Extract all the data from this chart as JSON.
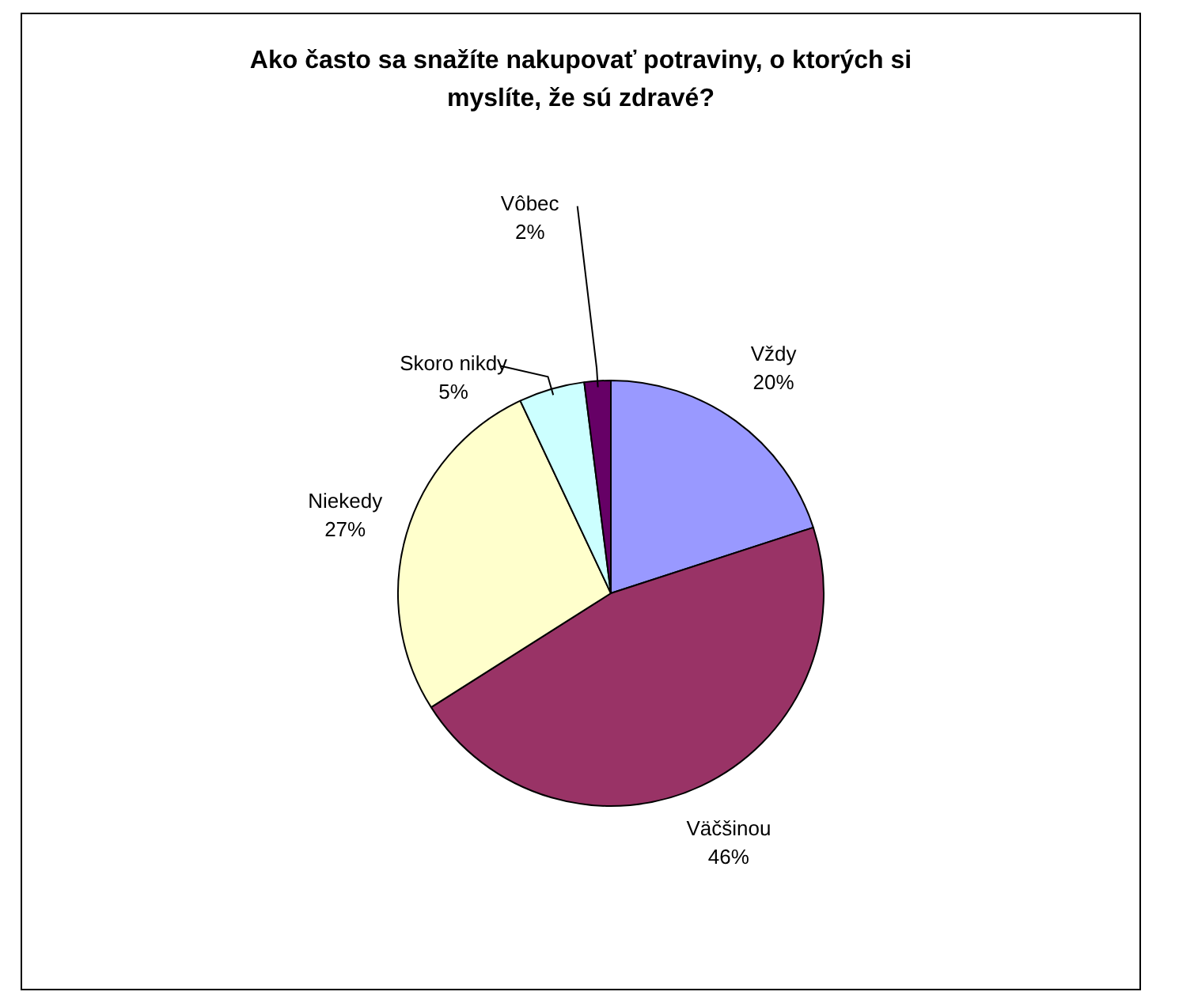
{
  "chart_data": {
    "type": "pie",
    "title": "Ako často sa snažíte nakupovať potraviny, o ktorých si myslíte, že sú zdravé?",
    "categories": [
      "Vždy",
      "Väčšinou",
      "Niekedy",
      "Skoro nikdy",
      "Vôbec"
    ],
    "values": [
      20,
      46,
      27,
      5,
      2
    ],
    "colors": [
      "#9999ff",
      "#993366",
      "#ffffcc",
      "#ccffff",
      "#660066"
    ],
    "value_labels": [
      "20%",
      "46%",
      "27%",
      "5%",
      "2%"
    ],
    "legend": false
  }
}
